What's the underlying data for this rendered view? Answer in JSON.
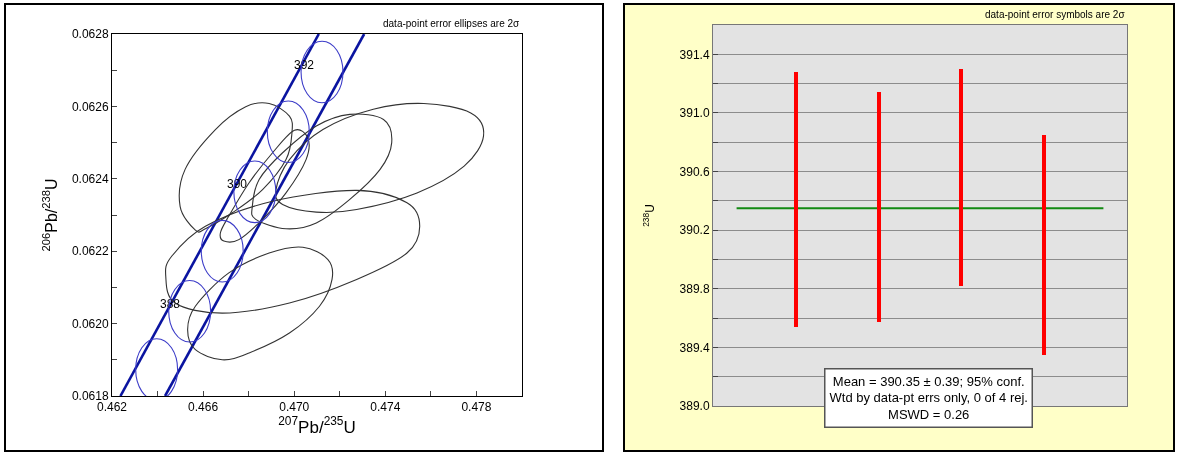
{
  "chart_data": [
    {
      "type": "line",
      "xlabel": "$^{207}$Pb/$^{235}$U",
      "ylabel": "$^{206}$Pb/$^{238}$U",
      "xlim": [
        0.462,
        0.48
      ],
      "ylim": [
        0.0618,
        0.0628
      ],
      "xticks": [
        0.462,
        {
          "value": 0.464,
          "label": null
        },
        0.466,
        {
          "value": 0.468,
          "label": null
        },
        {
          "value": 0.47,
          "label": "0.470"
        },
        {
          "value": 0.472,
          "label": null
        },
        0.474,
        {
          "value": 0.476,
          "label": null
        },
        0.478,
        {
          "value": 0.48,
          "label": null
        }
      ],
      "yticks": [
        0.0618,
        {
          "value": 0.0619,
          "label": null
        },
        {
          "value": 0.062,
          "label": "0.0620"
        },
        {
          "value": 0.0621,
          "label": null
        },
        0.0622,
        {
          "value": 0.0623,
          "label": null
        },
        0.0624,
        {
          "value": 0.0625,
          "label": null
        },
        0.0626,
        {
          "value": 0.0627,
          "label": null
        },
        0.0628
      ],
      "grid": false,
      "marker": "none",
      "line_style": "solid",
      "annotations": [
        "data-point error ellipses are 2σ",
        "392",
        "390",
        "388"
      ],
      "series": [
        {
          "color": "#0a14a0",
          "x": [
            0.46237,
            0.47108
          ],
          "values": [
            0.0618,
            0.0628
          ]
        },
        {
          "color": "#0a14a0",
          "x": [
            0.46433,
            0.47307
          ],
          "values": [
            0.0618,
            0.0628
          ]
        }
      ]
    },
    {
      "type": "bar",
      "ylabel": "$^{238}$U",
      "categories": [
        null,
        null,
        null,
        null
      ],
      "base": [
        389.54,
        389.57,
        389.82,
        389.35
      ],
      "values": [
        1.74,
        1.57,
        1.48,
        1.5
      ],
      "color": "#ff0000",
      "ylim": [
        389.0,
        391.6
      ],
      "yticks": [
        {
          "value": 389.0,
          "label": "389.0"
        },
        {
          "value": 389.2,
          "label": null
        },
        389.4,
        {
          "value": 389.6,
          "label": null
        },
        389.8,
        {
          "value": 390.0,
          "label": null
        },
        390.2,
        {
          "value": 390.4,
          "label": null
        },
        390.6,
        {
          "value": 390.8,
          "label": null
        },
        {
          "value": 391.0,
          "label": "391.0"
        },
        {
          "value": 391.2,
          "label": null
        },
        391.4
      ],
      "grid": "y",
      "tick_labels": "y",
      "ref_lines": [
        {
          "axis": "y",
          "value": 390.35,
          "color": "#138a13"
        }
      ],
      "annotations": [
        "data-point error symbols are 2σ",
        "Mean = 390.35 ± 0.39; 95% conf.\nWtd by data-pt errs only, 0 of 4 rej.\nMSWD = 0.26"
      ]
    }
  ]
}
